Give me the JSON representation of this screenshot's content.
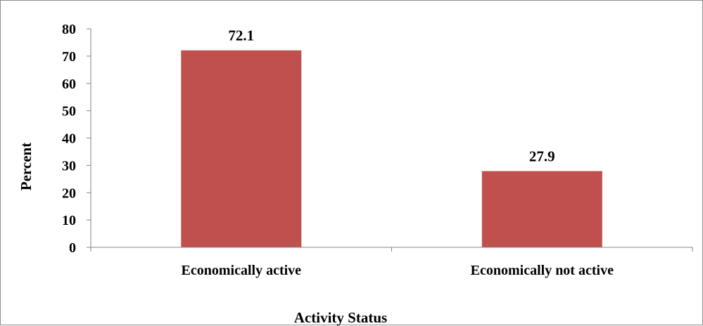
{
  "chart_data": {
    "type": "bar",
    "categories": [
      "Economically active",
      "Economically not active"
    ],
    "values": [
      72.1,
      27.9
    ],
    "value_labels": [
      "72.1",
      "27.9"
    ],
    "title": "",
    "xlabel": "Activity Status",
    "ylabel": "Percent",
    "ylim": [
      0,
      80
    ],
    "yticks": [
      0,
      10,
      20,
      30,
      40,
      50,
      60,
      70,
      80
    ],
    "grid": false,
    "legend": "none",
    "bar_color": "#C0504D",
    "axis_color": "#868686"
  }
}
